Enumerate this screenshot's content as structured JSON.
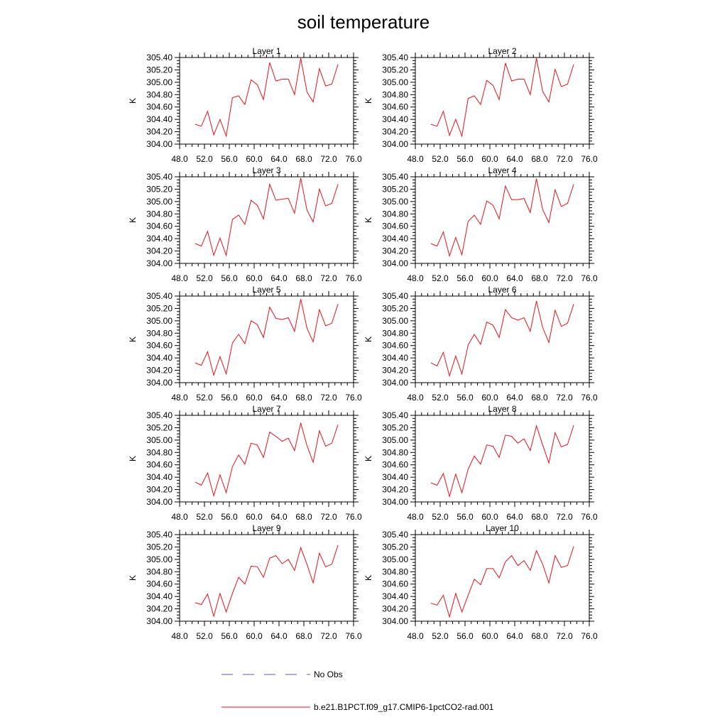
{
  "colors": {
    "model_line": "#e8121a",
    "obs_line": "#5a5ad2",
    "frame": "#000000"
  },
  "chart_data": {
    "type": "line",
    "title": "soil temperature",
    "x": [
      50.5,
      51.5,
      52.5,
      53.5,
      54.5,
      55.5,
      56.5,
      57.5,
      58.5,
      59.5,
      60.5,
      61.5,
      62.5,
      63.5,
      64.5,
      65.5,
      66.5,
      67.5,
      68.5,
      69.5,
      70.5,
      71.5,
      72.5,
      73.5
    ],
    "xlim": [
      48,
      76
    ],
    "ylim": [
      304.0,
      305.4
    ],
    "xticks": [
      48,
      52,
      56,
      60,
      64,
      68,
      72,
      76
    ],
    "xtick_labels": [
      "48.0",
      "52.0",
      "56.0",
      "60.0",
      "64.0",
      "68.0",
      "72.0",
      "76.0"
    ],
    "yticks": [
      304.0,
      304.2,
      304.4,
      304.6,
      304.8,
      305.0,
      305.2,
      305.4
    ],
    "ytick_labels": [
      "304.00",
      "304.20",
      "304.40",
      "304.60",
      "304.80",
      "305.00",
      "305.20",
      "305.40"
    ],
    "ylabel": "K",
    "legend": [
      {
        "name": "No Obs",
        "style": "dashed",
        "color": "#5a5ad2"
      },
      {
        "name": "b.e21.B1PCT.f09_g17.CMIP6-1pctCO2-rad.001",
        "style": "solid",
        "color": "#e8121a"
      }
    ],
    "legend_position": "bottom-center",
    "panels": [
      {
        "title": "Layer 1",
        "values": [
          304.32,
          304.29,
          304.53,
          304.15,
          304.4,
          304.13,
          304.75,
          304.78,
          304.64,
          305.04,
          304.96,
          304.72,
          305.32,
          305.02,
          305.05,
          305.05,
          304.8,
          305.39,
          304.84,
          304.68,
          305.22,
          304.94,
          304.97,
          305.29
        ]
      },
      {
        "title": "Layer 2",
        "values": [
          304.32,
          304.29,
          304.53,
          304.14,
          304.4,
          304.13,
          304.74,
          304.78,
          304.64,
          305.03,
          304.95,
          304.72,
          305.31,
          305.02,
          305.05,
          305.05,
          304.8,
          305.39,
          304.85,
          304.68,
          305.21,
          304.93,
          304.97,
          305.29
        ]
      },
      {
        "title": "Layer 3",
        "values": [
          304.32,
          304.28,
          304.52,
          304.13,
          304.41,
          304.13,
          304.71,
          304.78,
          304.63,
          305.02,
          304.94,
          304.72,
          305.28,
          305.02,
          305.04,
          305.05,
          304.81,
          305.38,
          304.86,
          304.67,
          305.2,
          304.93,
          304.97,
          305.28
        ]
      },
      {
        "title": "Layer 4",
        "values": [
          304.32,
          304.28,
          304.51,
          304.12,
          304.42,
          304.14,
          304.68,
          304.78,
          304.63,
          305.01,
          304.94,
          304.72,
          305.25,
          305.03,
          305.03,
          305.05,
          304.82,
          305.37,
          304.87,
          304.66,
          305.19,
          304.92,
          304.97,
          305.28
        ]
      },
      {
        "title": "Layer 5",
        "values": [
          304.32,
          304.28,
          304.5,
          304.12,
          304.42,
          304.14,
          304.64,
          304.78,
          304.63,
          305.0,
          304.94,
          304.73,
          305.22,
          305.04,
          305.02,
          305.05,
          304.83,
          305.35,
          304.88,
          304.66,
          305.18,
          304.92,
          304.96,
          305.27
        ]
      },
      {
        "title": "Layer 6",
        "values": [
          304.32,
          304.27,
          304.49,
          304.11,
          304.43,
          304.14,
          304.61,
          304.78,
          304.62,
          304.98,
          304.93,
          304.73,
          305.18,
          305.05,
          305.01,
          305.05,
          304.83,
          305.32,
          304.89,
          304.65,
          305.17,
          304.91,
          304.96,
          305.27
        ]
      },
      {
        "title": "Layer 7",
        "values": [
          304.32,
          304.27,
          304.47,
          304.1,
          304.44,
          304.15,
          304.57,
          304.76,
          304.61,
          304.95,
          304.92,
          304.72,
          305.13,
          305.06,
          304.98,
          305.03,
          304.83,
          305.28,
          304.91,
          304.64,
          305.15,
          304.9,
          304.95,
          305.25
        ]
      },
      {
        "title": "Layer 8",
        "values": [
          304.31,
          304.27,
          304.46,
          304.09,
          304.45,
          304.15,
          304.53,
          304.74,
          304.61,
          304.92,
          304.9,
          304.72,
          305.08,
          305.06,
          304.95,
          305.02,
          304.83,
          305.23,
          304.92,
          304.63,
          305.12,
          304.89,
          304.93,
          305.24
        ]
      },
      {
        "title": "Layer 9",
        "values": [
          304.3,
          304.27,
          304.44,
          304.08,
          304.45,
          304.15,
          304.45,
          304.71,
          304.6,
          304.89,
          304.88,
          304.71,
          305.02,
          305.06,
          304.93,
          305.0,
          304.82,
          305.19,
          304.92,
          304.62,
          305.1,
          304.88,
          304.92,
          305.23
        ]
      },
      {
        "title": "Layer 10",
        "values": [
          304.29,
          304.26,
          304.42,
          304.07,
          304.45,
          304.15,
          304.42,
          304.68,
          304.59,
          304.85,
          304.85,
          304.7,
          304.96,
          305.06,
          304.9,
          304.98,
          304.82,
          305.14,
          304.92,
          304.62,
          305.06,
          304.87,
          304.9,
          305.21
        ]
      }
    ]
  }
}
